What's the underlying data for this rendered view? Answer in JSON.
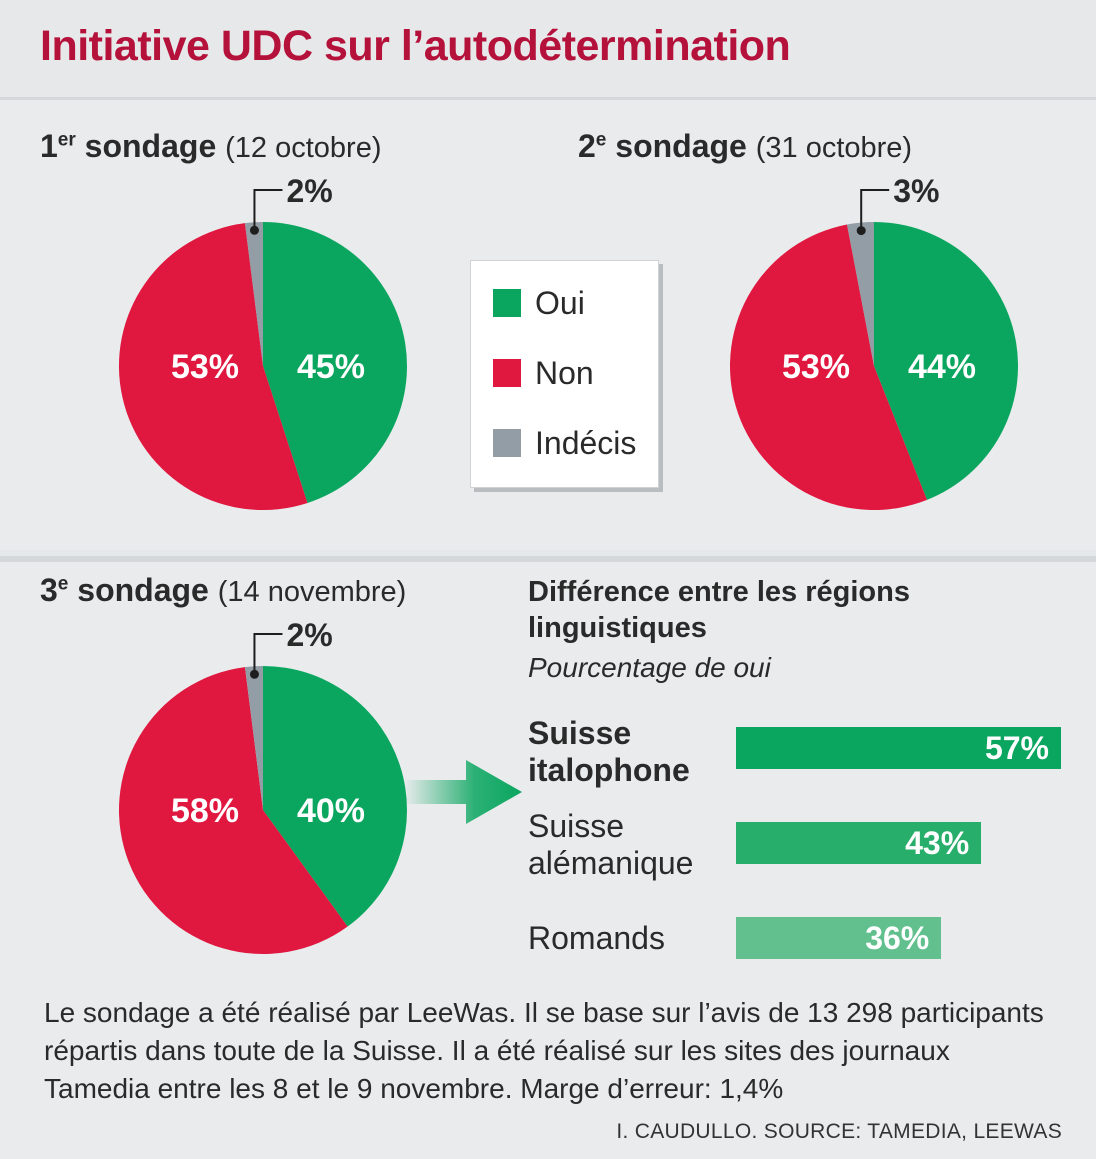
{
  "title": "Initiative UDC sur l’autodétermination",
  "legend": [
    {
      "label": "Oui",
      "color": "#0aa65f"
    },
    {
      "label": "Non",
      "color": "#e0173f"
    },
    {
      "label": "Indécis",
      "color": "#939da5"
    }
  ],
  "polls": [
    {
      "ordinal": "1",
      "suffix": "er",
      "label": "sondage",
      "date": "(12 octobre)",
      "oui": 45,
      "non": 53,
      "indecis": 2,
      "oui_label": "45%",
      "non_label": "53%",
      "indecis_label": "2%"
    },
    {
      "ordinal": "2",
      "suffix": "e",
      "label": "sondage",
      "date": "(31 octobre)",
      "oui": 44,
      "non": 53,
      "indecis": 3,
      "oui_label": "44%",
      "non_label": "53%",
      "indecis_label": "3%"
    },
    {
      "ordinal": "3",
      "suffix": "e",
      "label": "sondage",
      "date": "(14 novembre)",
      "oui": 40,
      "non": 58,
      "indecis": 2,
      "oui_label": "40%",
      "non_label": "58%",
      "indecis_label": "2%"
    }
  ],
  "regions": {
    "title": "Différence entre les régions linguistiques",
    "unit": "Pourcentage de oui",
    "items": [
      {
        "label_line1": "Suisse",
        "label_line2": "italophone",
        "value": 57,
        "value_label": "57%",
        "color": "#0aa65f"
      },
      {
        "label_line1": "Suisse",
        "label_line2": "alémanique",
        "value": 43,
        "value_label": "43%",
        "color": "#27ae6a"
      },
      {
        "label_line1": "Romands",
        "label_line2": "",
        "value": 36,
        "value_label": "36%",
        "color": "#62c08e"
      }
    ]
  },
  "note": "Le sondage a été réalisé par LeeWas. Il se base sur l’avis de 13 298 participants répartis dans toute de la Suisse. Il a été réalisé sur les sites des journaux Tamedia entre les 8 et le 9 novembre. Marge d’erreur: 1,4%",
  "credit": "I. CAUDULLO. SOURCE: TAMEDIA, LEEWAS",
  "chart_data": [
    {
      "type": "pie",
      "title": "1er sondage (12 octobre)",
      "labels": [
        "Oui",
        "Non",
        "Indécis"
      ],
      "values": [
        45,
        53,
        2
      ]
    },
    {
      "type": "pie",
      "title": "2e sondage (31 octobre)",
      "labels": [
        "Oui",
        "Non",
        "Indécis"
      ],
      "values": [
        44,
        53,
        3
      ]
    },
    {
      "type": "pie",
      "title": "3e sondage (14 novembre)",
      "labels": [
        "Oui",
        "Non",
        "Indécis"
      ],
      "values": [
        40,
        58,
        2
      ]
    },
    {
      "type": "bar",
      "title": "Différence entre les régions linguistiques",
      "ylabel": "Pourcentage de oui",
      "categories": [
        "Suisse italophone",
        "Suisse alémanique",
        "Romands"
      ],
      "values": [
        57,
        43,
        36
      ]
    }
  ]
}
